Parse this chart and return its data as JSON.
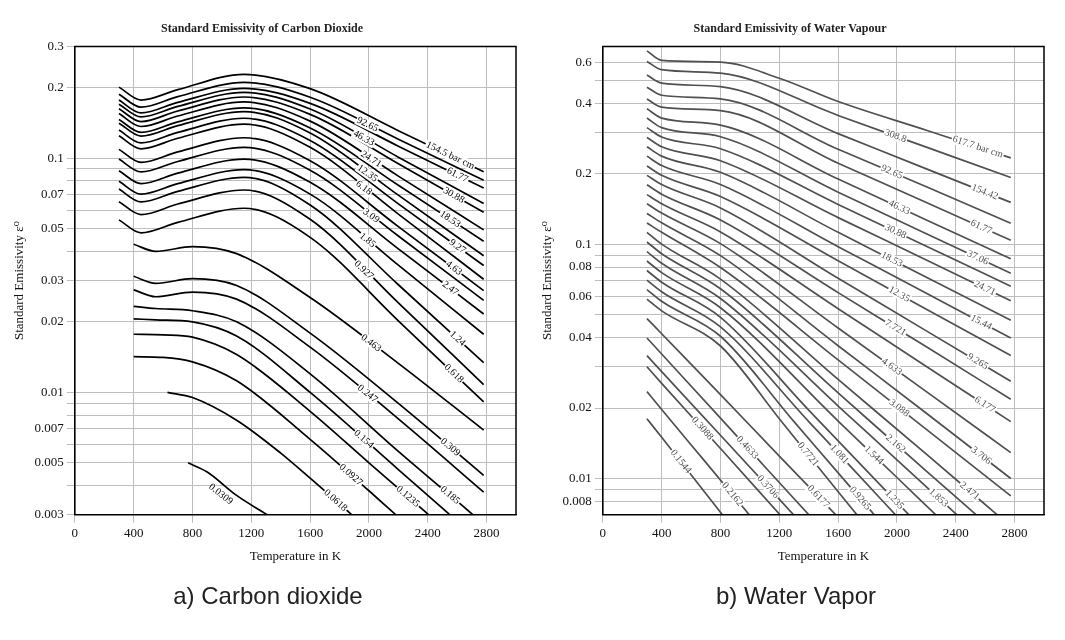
{
  "chart_data": [
    {
      "type": "line",
      "title": "Standard Emissivity of Carbon Dioxide",
      "xlabel": "Temperature in K",
      "ylabel": "Standard Emissivity ε⁰",
      "annotations": [
        "a) Carbon dioxide"
      ],
      "log": "y",
      "grid": true,
      "legend": false,
      "marker": "none",
      "xlim": [
        0,
        3000
      ],
      "xticks": [
        0,
        400,
        800,
        1200,
        1600,
        2000,
        2400,
        2800
      ],
      "ylim": [
        0.003,
        0.3
      ],
      "yticks": [
        0.003,
        {
          "value": 0.004,
          "label": null
        },
        0.005,
        {
          "value": 0.006,
          "label": null
        },
        0.007,
        {
          "value": 0.008,
          "label": null
        },
        {
          "value": 0.009,
          "label": null
        },
        0.01,
        0.02,
        0.03,
        {
          "value": 0.04,
          "label": null
        },
        0.05,
        {
          "value": 0.06,
          "label": null
        },
        0.07,
        {
          "value": 0.08,
          "label": null
        },
        {
          "value": 0.09,
          "label": null
        },
        0.1,
        0.2,
        0.3
      ],
      "series": [
        {
          "name": "154.5 bar cm",
          "color": "#000000",
          "x": [
            300,
            450,
            700,
            1150,
            1600,
            2200,
            2780
          ],
          "values": [
            0.201,
            0.177,
            0.196,
            0.228,
            0.198,
            0.131,
            0.0875
          ]
        },
        {
          "name": "92.65",
          "color": "#000000",
          "x": [
            300,
            450,
            700,
            1150,
            1600,
            2200,
            2780
          ],
          "values": [
            0.1875,
            0.165,
            0.183,
            0.2105,
            0.182,
            0.1205,
            0.0804
          ]
        },
        {
          "name": "61.77",
          "color": "#000000",
          "x": [
            300,
            450,
            700,
            1150,
            1600,
            2200,
            2780
          ],
          "values": [
            0.177,
            0.156,
            0.173,
            0.1986,
            0.1714,
            0.1125,
            0.0745
          ]
        },
        {
          "name": "46.33",
          "color": "#000000",
          "x": [
            300,
            450,
            700,
            1150,
            1600,
            2200,
            2780
          ],
          "values": [
            0.17,
            0.15,
            0.1663,
            0.191,
            0.162,
            0.101,
            0.064
          ]
        },
        {
          "name": "30.88",
          "color": "#000000",
          "x": [
            300,
            450,
            700,
            1150,
            1600,
            2200,
            2780
          ],
          "values": [
            0.1625,
            0.1432,
            0.159,
            0.1824,
            0.1538,
            0.0946,
            0.0587
          ]
        },
        {
          "name": "24.71",
          "color": "#000000",
          "x": [
            300,
            450,
            700,
            1150,
            1600,
            2200,
            2780
          ],
          "values": [
            0.155,
            0.1365,
            0.1514,
            0.1738,
            0.1439,
            0.0838,
            0.0494
          ]
        },
        {
          "name": "18.53",
          "color": "#000000",
          "x": [
            300,
            450,
            700,
            1150,
            1600,
            2200,
            2780
          ],
          "values": [
            0.1462,
            0.1288,
            0.1429,
            0.164,
            0.1346,
            0.0766,
            0.0442
          ]
        },
        {
          "name": "12.35",
          "color": "#000000",
          "x": [
            300,
            450,
            700,
            1150,
            1600,
            2200,
            2780
          ],
          "values": [
            0.141,
            0.1242,
            0.1377,
            0.158,
            0.128,
            0.0695,
            0.0383
          ]
        },
        {
          "name": "9.27",
          "color": "#000000",
          "x": [
            300,
            450,
            700,
            1150,
            1600,
            2200,
            2780
          ],
          "values": [
            0.1318,
            0.1161,
            0.1288,
            0.148,
            0.119,
            0.0638,
            0.0348
          ]
        },
        {
          "name": "6.18",
          "color": "#000000",
          "x": [
            300,
            450,
            700,
            1150,
            1600,
            2200,
            2780
          ],
          "values": [
            0.1245,
            0.1096,
            0.1216,
            0.1396,
            0.1112,
            0.0577,
            0.0304
          ]
        },
        {
          "name": "4.63",
          "color": "#000000",
          "x": [
            300,
            450,
            700,
            1150,
            1600,
            2200,
            2780
          ],
          "values": [
            0.109,
            0.0959,
            0.1064,
            0.1222,
            0.0975,
            0.051,
            0.0272
          ]
        },
        {
          "name": "3.09",
          "color": "#000000",
          "x": [
            300,
            450,
            700,
            1150,
            1600,
            2200,
            2780
          ],
          "values": [
            0.0991,
            0.0873,
            0.0968,
            0.1112,
            0.0887,
            0.0465,
            0.0247
          ]
        },
        {
          "name": "2.47",
          "color": "#000000",
          "x": [
            300,
            450,
            700,
            1150,
            1600,
            2200,
            2780
          ],
          "values": [
            0.0883,
            0.0778,
            0.0863,
            0.0991,
            0.0789,
            0.041,
            0.0216
          ]
        },
        {
          "name": "1.85",
          "color": "#000000",
          "x": [
            300,
            450,
            700,
            1150,
            1600,
            2200,
            2780
          ],
          "values": [
            0.0796,
            0.0702,
            0.0778,
            0.0893,
            0.0702,
            0.0349,
            0.0177
          ]
        },
        {
          "name": "1.24",
          "color": "#000000",
          "x": [
            300,
            450,
            700,
            1150,
            1600,
            2200,
            2780
          ],
          "values": [
            0.0738,
            0.065,
            0.0721,
            0.0828,
            0.0631,
            0.0288,
            0.0134
          ]
        },
        {
          "name": "0.927",
          "color": "#000000",
          "x": [
            300,
            450,
            700,
            1150,
            1600,
            2200,
            2780
          ],
          "values": [
            0.0652,
            0.0574,
            0.0637,
            0.0731,
            0.0548,
            0.0241,
            0.0108
          ]
        },
        {
          "name": "0.618",
          "color": "#000000",
          "x": [
            300,
            450,
            700,
            1150,
            1600,
            2200,
            2780
          ],
          "values": [
            0.0545,
            0.048,
            0.0532,
            0.0611,
            0.0459,
            0.0202,
            0.0091
          ]
        },
        {
          "name": "0.463",
          "color": "#000000",
          "x": [
            400,
            550,
            800,
            1100,
            1600,
            2200,
            2780
          ],
          "values": [
            0.0429,
            0.04,
            0.0419,
            0.0391,
            0.0254,
            0.0133,
            0.0069
          ]
        },
        {
          "name": "0.309",
          "color": "#000000",
          "x": [
            400,
            550,
            800,
            1100,
            1600,
            2200,
            2780
          ],
          "values": [
            0.0313,
            0.0292,
            0.0306,
            0.0286,
            0.0179,
            0.00897,
            0.00442
          ]
        },
        {
          "name": "0.247",
          "color": "#000000",
          "x": [
            400,
            550,
            800,
            1100,
            1600,
            2200,
            2780
          ],
          "values": [
            0.0274,
            0.0256,
            0.0268,
            0.025,
            0.0156,
            0.0077,
            0.00375
          ]
        },
        {
          "name": "0.185",
          "color": "#000000",
          "x": [
            400,
            550,
            800,
            1100,
            1600,
            2200,
            2708
          ],
          "values": [
            0.0233,
            0.0228,
            0.0223,
            0.02,
            0.012,
            0.0056,
            0.003
          ]
        },
        {
          "name": "0.154",
          "color": "#000000",
          "x": [
            400,
            550,
            800,
            1100,
            1600,
            2200,
            2551
          ],
          "values": [
            0.0206,
            0.0204,
            0.02,
            0.0174,
            0.01,
            0.00468,
            0.003
          ]
        },
        {
          "name": "0.1235",
          "color": "#000000",
          "x": [
            400,
            600,
            800,
            1100,
            1600,
            2000,
            2407
          ],
          "values": [
            0.0177,
            0.0176,
            0.0172,
            0.0145,
            0.0083,
            0.005,
            0.003
          ]
        },
        {
          "name": "0.0927",
          "color": "#000000",
          "x": [
            400,
            600,
            800,
            1100,
            1600,
            2000,
            2183
          ],
          "values": [
            0.0142,
            0.0141,
            0.0135,
            0.0112,
            0.0063,
            0.0038,
            0.003
          ]
        },
        {
          "name": "0.0618",
          "color": "#000000",
          "x": [
            630,
            800,
            1100,
            1400,
            1600,
            1884
          ],
          "values": [
            0.01,
            0.0095,
            0.0076,
            0.0055,
            0.0043,
            0.003
          ]
        },
        {
          "name": "0.0309",
          "color": "#000000",
          "x": [
            770,
            900,
            1100,
            1308
          ],
          "values": [
            0.005,
            0.00457,
            0.00363,
            0.003
          ]
        }
      ]
    },
    {
      "type": "line",
      "title": "Standard Emissivity of Water Vapour",
      "xlabel": "Temperature in K",
      "ylabel": "Standard Emissivity ε⁰",
      "annotations": [
        "b) Water Vapor"
      ],
      "log": "y",
      "grid": true,
      "legend": false,
      "marker": "none",
      "xlim": [
        0,
        3000
      ],
      "xticks": [
        0,
        400,
        800,
        1200,
        1600,
        2000,
        2400,
        2800
      ],
      "ylim": [
        0.007,
        0.7
      ],
      "yticks": [
        0.008,
        {
          "value": 0.009,
          "label": null
        },
        0.01,
        0.02,
        {
          "value": 0.03,
          "label": null
        },
        0.04,
        {
          "value": 0.05,
          "label": null
        },
        0.06,
        {
          "value": 0.07,
          "label": null
        },
        0.08,
        {
          "value": 0.09,
          "label": null
        },
        0.1,
        0.2,
        {
          "value": 0.3,
          "label": null
        },
        0.4,
        {
          "value": 0.5,
          "label": null
        },
        0.6
      ],
      "series": [
        {
          "name": "617.7 bar cm",
          "color": "#505050",
          "x": [
            300,
            400,
            800,
            1200,
            1600,
            2200,
            2774
          ],
          "values": [
            0.67,
            0.61,
            0.6,
            0.512,
            0.407,
            0.307,
            0.234
          ]
        },
        {
          "name": "308.8",
          "color": "#505050",
          "x": [
            300,
            400,
            800,
            1600,
            2200,
            2774
          ],
          "values": [
            0.604,
            0.557,
            0.538,
            0.355,
            0.26,
            0.193
          ]
        },
        {
          "name": "154.42",
          "color": "#505050",
          "x": [
            300,
            400,
            800,
            1600,
            2200,
            2774
          ],
          "values": [
            0.528,
            0.488,
            0.471,
            0.297,
            0.21,
            0.151
          ]
        },
        {
          "name": "92.65",
          "color": "#505050",
          "x": [
            300,
            400,
            800,
            1600,
            2200,
            2774
          ],
          "values": [
            0.469,
            0.433,
            0.418,
            0.2547,
            0.176,
            0.123
          ]
        },
        {
          "name": "61.77",
          "color": "#505050",
          "x": [
            300,
            400,
            800,
            1600,
            2200,
            2774
          ],
          "values": [
            0.417,
            0.385,
            0.372,
            0.222,
            0.151,
            0.104
          ]
        },
        {
          "name": "46.33",
          "color": "#505050",
          "x": [
            300,
            400,
            800,
            1600,
            2200,
            2774
          ],
          "values": [
            0.379,
            0.346,
            0.323,
            0.19,
            0.127,
            0.0867
          ]
        },
        {
          "name": "37.06",
          "color": "#505050",
          "x": [
            300,
            400,
            800,
            1600,
            2200,
            2774
          ],
          "values": [
            0.346,
            0.315,
            0.288,
            0.167,
            0.111,
            0.0752
          ]
        },
        {
          "name": "30.88",
          "color": "#505050",
          "x": [
            300,
            400,
            800,
            1600,
            2200,
            2774
          ],
          "values": [
            0.315,
            0.287,
            0.256,
            0.148,
            0.0982,
            0.0662
          ]
        },
        {
          "name": "24.71",
          "color": "#505050",
          "x": [
            300,
            400,
            800,
            1600,
            2200,
            2774
          ],
          "values": [
            0.286,
            0.261,
            0.2275,
            0.13,
            0.0857,
            0.0574
          ]
        },
        {
          "name": "18.53",
          "color": "#505050",
          "x": [
            300,
            400,
            800,
            1600,
            2200,
            2774
          ],
          "values": [
            0.261,
            0.238,
            0.203,
            0.1125,
            0.0724,
            0.0474
          ]
        },
        {
          "name": "15.44",
          "color": "#505050",
          "x": [
            300,
            400,
            800,
            1600,
            2200,
            2774
          ],
          "values": [
            0.238,
            0.217,
            0.18,
            0.0977,
            0.0618,
            0.0398
          ]
        },
        {
          "name": "12.35",
          "color": "#505050",
          "x": [
            300,
            400,
            800,
            1600,
            2200,
            2774
          ],
          "values": [
            0.216,
            0.197,
            0.16,
            0.0851,
            0.0528,
            0.0335
          ]
        },
        {
          "name": "9.265",
          "color": "#505050",
          "x": [
            300,
            400,
            800,
            1600,
            2200,
            2774
          ],
          "values": [
            0.197,
            0.18,
            0.143,
            0.0716,
            0.0427,
            0.026
          ]
        },
        {
          "name": "7.721",
          "color": "#505050",
          "x": [
            300,
            400,
            800,
            1600,
            2200,
            2774
          ],
          "values": [
            0.1795,
            0.1637,
            0.127,
            0.0622,
            0.0365,
            0.0218
          ]
        },
        {
          "name": "6.177",
          "color": "#505050",
          "x": [
            300,
            400,
            800,
            1600,
            2200,
            2774
          ],
          "values": [
            0.163,
            0.149,
            0.113,
            0.0531,
            0.0301,
            0.0175
          ]
        },
        {
          "name": "4.633",
          "color": "#505050",
          "x": [
            300,
            400,
            800,
            1600,
            2200,
            2774
          ],
          "values": [
            0.149,
            0.136,
            0.1007,
            0.0439,
            0.0235,
            0.0129
          ]
        },
        {
          "name": "3.706",
          "color": "#505050",
          "x": [
            300,
            400,
            800,
            1600,
            2200,
            2774
          ],
          "values": [
            0.1355,
            0.1236,
            0.0895,
            0.0369,
            0.019,
            0.01
          ]
        },
        {
          "name": "3.088",
          "color": "#505050",
          "x": [
            300,
            400,
            800,
            1600,
            2200,
            2774
          ],
          "values": [
            0.1233,
            0.1125,
            0.0796,
            0.0321,
            0.0162,
            0.00843
          ]
        },
        {
          "name": "2.471",
          "color": "#505050",
          "x": [
            300,
            400,
            800,
            1600,
            2200,
            2682
          ],
          "values": [
            0.1125,
            0.1002,
            0.071,
            0.0265,
            0.0127,
            0.007
          ]
        },
        {
          "name": "2.162",
          "color": "#505050",
          "x": [
            300,
            400,
            800,
            1600,
            2200,
            2539
          ],
          "values": [
            0.1023,
            0.0912,
            0.0646,
            0.0232,
            0.01076,
            0.007
          ]
        },
        {
          "name": "1.853",
          "color": "#505050",
          "x": [
            300,
            400,
            800,
            1600,
            2000,
            2408
          ],
          "values": [
            0.0931,
            0.083,
            0.0587,
            0.0204,
            0.012,
            0.007
          ]
        },
        {
          "name": "1.544",
          "color": "#505050",
          "x": [
            300,
            400,
            800,
            1600,
            2000,
            2264
          ],
          "values": [
            0.0849,
            0.0757,
            0.0536,
            0.0176,
            0.0101,
            0.007
          ]
        },
        {
          "name": "1.235",
          "color": "#505050",
          "x": [
            300,
            400,
            800,
            1400,
            1800,
            2081
          ],
          "values": [
            0.0773,
            0.0689,
            0.0488,
            0.0196,
            0.0107,
            0.007
          ]
        },
        {
          "name": "1.081",
          "color": "#505050",
          "x": [
            300,
            400,
            800,
            1400,
            1700,
            1990
          ],
          "values": [
            0.0703,
            0.0627,
            0.0444,
            0.0175,
            0.011,
            0.007
          ]
        },
        {
          "name": "0.9265",
          "color": "#505050",
          "x": [
            300,
            400,
            800,
            1300,
            1600,
            1846
          ],
          "values": [
            0.0641,
            0.0571,
            0.0405,
            0.0175,
            0.01057,
            0.007
          ]
        },
        {
          "name": "0.7721",
          "color": "#505050",
          "x": [
            300,
            400,
            800,
            1200,
            1500,
            1728
          ],
          "values": [
            0.0583,
            0.052,
            0.0368,
            0.018,
            0.0105,
            0.007
          ]
        },
        {
          "name": "0.6177",
          "color": "#505050",
          "x": [
            300,
            400,
            800,
            1200,
            1584
          ],
          "values": [
            0.0482,
            0.0415,
            0.0228,
            0.01247,
            0.007
          ]
        },
        {
          "name": "0.4633",
          "color": "#505050",
          "x": [
            300,
            400,
            800,
            1100,
            1401
          ],
          "values": [
            0.0398,
            0.034,
            0.0181,
            0.01125,
            0.007
          ]
        },
        {
          "name": "0.3706",
          "color": "#505050",
          "x": [
            300,
            400,
            800,
            1297
          ],
          "values": [
            0.0335,
            0.0286,
            0.0153,
            0.007
          ]
        },
        {
          "name": "0.3088",
          "color": "#505050",
          "x": [
            300,
            400,
            800,
            1205
          ],
          "values": [
            0.03,
            0.0255,
            0.01343,
            0.007
          ]
        },
        {
          "name": "0.2162",
          "color": "#505050",
          "x": [
            300,
            400,
            700,
            996
          ],
          "values": [
            0.0235,
            0.0197,
            0.01172,
            0.007
          ]
        },
        {
          "name": "0.1544",
          "color": "#505050",
          "x": [
            300,
            400,
            600,
            813
          ],
          "values": [
            0.018,
            0.015,
            0.01038,
            0.007
          ]
        }
      ]
    }
  ]
}
